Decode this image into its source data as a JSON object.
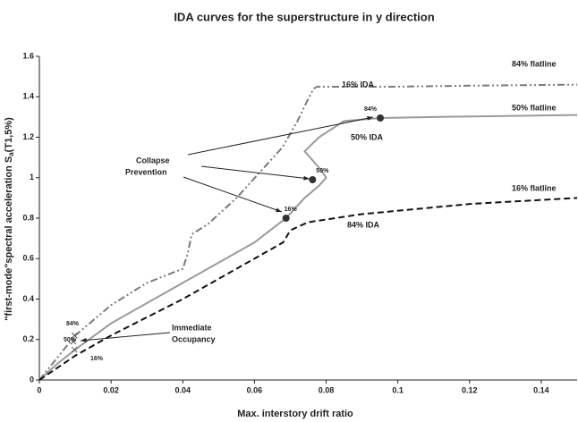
{
  "chart_data": {
    "type": "line",
    "title": "IDA curves for the superstructure in y direction",
    "xlabel": "Max. interstory drift ratio",
    "ylabel": "\"first-mode\"spectral acceleration S",
    "ylabel_sub": "a",
    "ylabel_suffix": "(T1,5%)",
    "xlim": [
      0,
      0.15
    ],
    "ylim": [
      0,
      1.6
    ],
    "xticks": [
      0,
      0.02,
      0.04,
      0.06,
      0.08,
      0.1,
      0.12,
      0.14
    ],
    "yticks": [
      0,
      0.2,
      0.4,
      0.6,
      0.8,
      1,
      1.2,
      1.4,
      1.6
    ],
    "series": [
      {
        "name": "16% IDA",
        "color": "#7a7a7a",
        "dash": "dashdot",
        "x": [
          0,
          0.005,
          0.01,
          0.02,
          0.03,
          0.04,
          0.0413,
          0.0425,
          0.047,
          0.055,
          0.0678,
          0.072,
          0.075,
          0.0765,
          0.0775,
          0.085,
          0.1,
          0.12,
          0.15
        ],
        "values": [
          0,
          0.11,
          0.22,
          0.37,
          0.48,
          0.55,
          0.62,
          0.72,
          0.77,
          0.9,
          1.15,
          1.28,
          1.39,
          1.44,
          1.45,
          1.45,
          1.45,
          1.455,
          1.46
        ]
      },
      {
        "name": "50% IDA",
        "color": "#9a9a9a",
        "dash": "solid",
        "x": [
          0,
          0.005,
          0.01,
          0.02,
          0.03,
          0.04,
          0.05,
          0.06,
          0.0688,
          0.074,
          0.078,
          0.08,
          0.0785,
          0.074,
          0.078,
          0.085,
          0.0951,
          0.11,
          0.13,
          0.15
        ],
        "values": [
          0,
          0.08,
          0.15,
          0.28,
          0.38,
          0.48,
          0.58,
          0.68,
          0.8,
          0.9,
          0.96,
          1.0,
          1.04,
          1.13,
          1.2,
          1.28,
          1.295,
          1.3,
          1.305,
          1.31
        ]
      },
      {
        "name": "84% IDA",
        "color": "#111111",
        "dash": "dashed",
        "x": [
          0,
          0.01,
          0.02,
          0.03,
          0.04,
          0.05,
          0.06,
          0.068,
          0.07,
          0.075,
          0.09,
          0.105,
          0.12,
          0.135,
          0.15
        ],
        "values": [
          0,
          0.12,
          0.22,
          0.31,
          0.4,
          0.5,
          0.6,
          0.68,
          0.74,
          0.78,
          0.82,
          0.845,
          0.87,
          0.885,
          0.9
        ]
      }
    ],
    "collapse_points": {
      "labels": [
        "84%",
        "50%",
        "16%"
      ],
      "x": [
        0.0951,
        0.0762,
        0.0688
      ],
      "values": [
        1.295,
        0.99,
        0.8
      ]
    },
    "io_points": {
      "labels": [
        "84%",
        "50%",
        "16%"
      ],
      "x": [
        0.0098,
        0.0095,
        0.0098
      ],
      "values": [
        0.22,
        0.19,
        0.15
      ]
    },
    "annotations": [
      "16% IDA",
      "84% flatline",
      "50% flatline",
      "50% IDA",
      "Collapse",
      "Prevention",
      "16% flatline",
      "84% IDA",
      "Immediate",
      "Occupancy"
    ]
  }
}
